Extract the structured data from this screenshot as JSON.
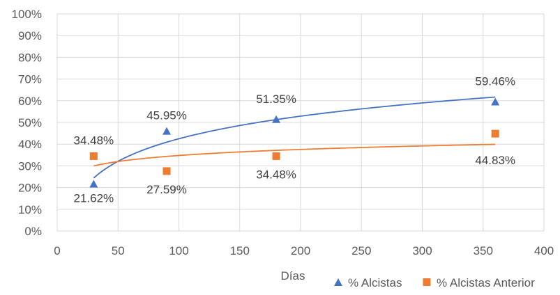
{
  "chart_data": {
    "type": "scatter",
    "title": "",
    "xlabel": "Días",
    "ylabel": "",
    "xlim": [
      0,
      400
    ],
    "ylim": [
      0,
      100
    ],
    "x_ticks": [
      0,
      50,
      100,
      150,
      200,
      250,
      300,
      350,
      400
    ],
    "y_ticks": [
      0,
      10,
      20,
      30,
      40,
      50,
      60,
      70,
      80,
      90,
      100
    ],
    "y_tick_labels": [
      "0%",
      "10%",
      "20%",
      "30%",
      "40%",
      "50%",
      "60%",
      "70%",
      "80%",
      "90%",
      "100%"
    ],
    "grid": true,
    "legend_position": "bottom-right",
    "series": [
      {
        "name": "% Alcistas",
        "marker": "triangle",
        "color": "#4472C4",
        "x": [
          30,
          90,
          180,
          360
        ],
        "y": [
          21.62,
          45.95,
          51.35,
          59.46
        ],
        "labels": [
          "21.62%",
          "45.95%",
          "51.35%",
          "59.46%"
        ],
        "trendline": "logarithmic"
      },
      {
        "name": "% Alcistas Anterior",
        "marker": "square",
        "color": "#ED7D31",
        "x": [
          30,
          90,
          180,
          360
        ],
        "y": [
          34.48,
          27.59,
          34.48,
          44.83
        ],
        "labels": [
          "34.48%",
          "27.59%",
          "34.48%",
          "44.83%"
        ],
        "trendline": "logarithmic"
      }
    ]
  }
}
